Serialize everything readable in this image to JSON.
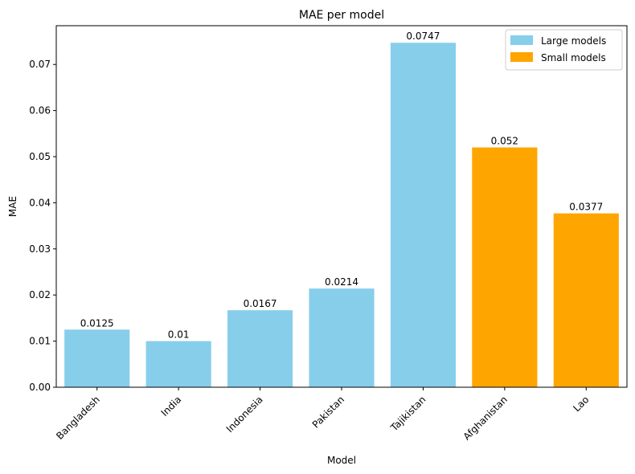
{
  "chart_data": {
    "type": "bar",
    "title": "MAE per model",
    "xlabel": "Model",
    "ylabel": "MAE",
    "ylim": [
      0,
      0.0784
    ],
    "yticks": [
      0.0,
      0.01,
      0.02,
      0.03,
      0.04,
      0.05,
      0.06,
      0.07
    ],
    "ytick_labels": [
      "0.00",
      "0.01",
      "0.02",
      "0.03",
      "0.04",
      "0.05",
      "0.06",
      "0.07"
    ],
    "categories": [
      "Bangladesh",
      "India",
      "Indonesia",
      "Pakistan",
      "Tajikistan",
      "Afghanistan",
      "Lao"
    ],
    "values": [
      0.0125,
      0.01,
      0.0167,
      0.0214,
      0.0747,
      0.052,
      0.0377
    ],
    "data_labels": [
      "0.0125",
      "0.01",
      "0.0167",
      "0.0214",
      "0.0747",
      "0.052",
      "0.0377"
    ],
    "groups": [
      "large",
      "large",
      "large",
      "large",
      "large",
      "small",
      "small"
    ],
    "legend": {
      "placement": "top-right",
      "entries": [
        {
          "key": "large",
          "label": "Large models",
          "color": "#87CEEB"
        },
        {
          "key": "small",
          "label": "Small models",
          "color": "#FFA500"
        }
      ]
    },
    "grid": false,
    "x_tick_rotation": 45
  }
}
